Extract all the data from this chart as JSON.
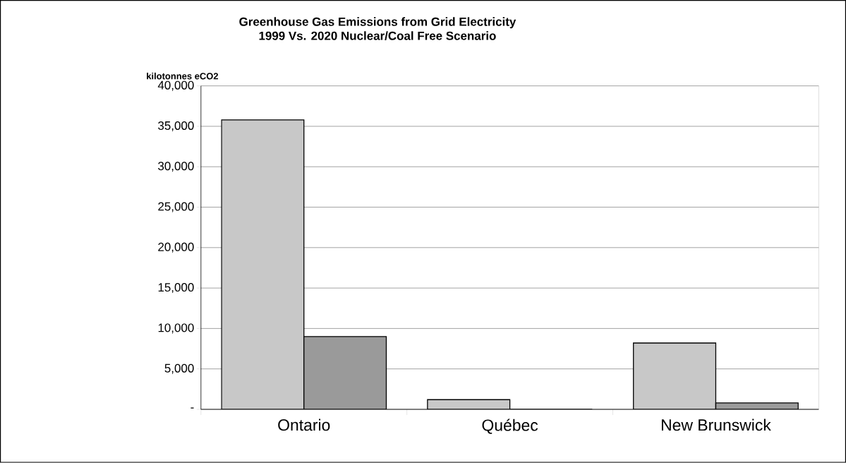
{
  "chart_data": {
    "type": "bar",
    "title": "Greenhouse Gas Emissions from Grid Electricity\n1999 Vs. 2020 Nuclear/Coal Free Scenario",
    "ylabel": "kilotonnes eCO2",
    "categories": [
      "Ontario",
      "Québec",
      "New Brunswick"
    ],
    "series": [
      {
        "color": "#c8c8c8",
        "values": [
          35800,
          1200,
          8200
        ]
      },
      {
        "color": "#9a9a9a",
        "values": [
          9000,
          0,
          800
        ]
      }
    ],
    "ylim": [
      0,
      40000
    ],
    "yticks": [
      {
        "value": 0,
        "label": "-"
      },
      {
        "value": 5000,
        "label": "5,000"
      },
      {
        "value": 10000,
        "label": "10,000"
      },
      {
        "value": 15000,
        "label": "15,000"
      },
      {
        "value": 20000,
        "label": "20,000"
      },
      {
        "value": 25000,
        "label": "25,000"
      },
      {
        "value": 30000,
        "label": "30,000"
      },
      {
        "value": 35000,
        "label": "35,000"
      },
      {
        "value": 40000,
        "label": "40,000"
      }
    ],
    "grid": "y"
  }
}
